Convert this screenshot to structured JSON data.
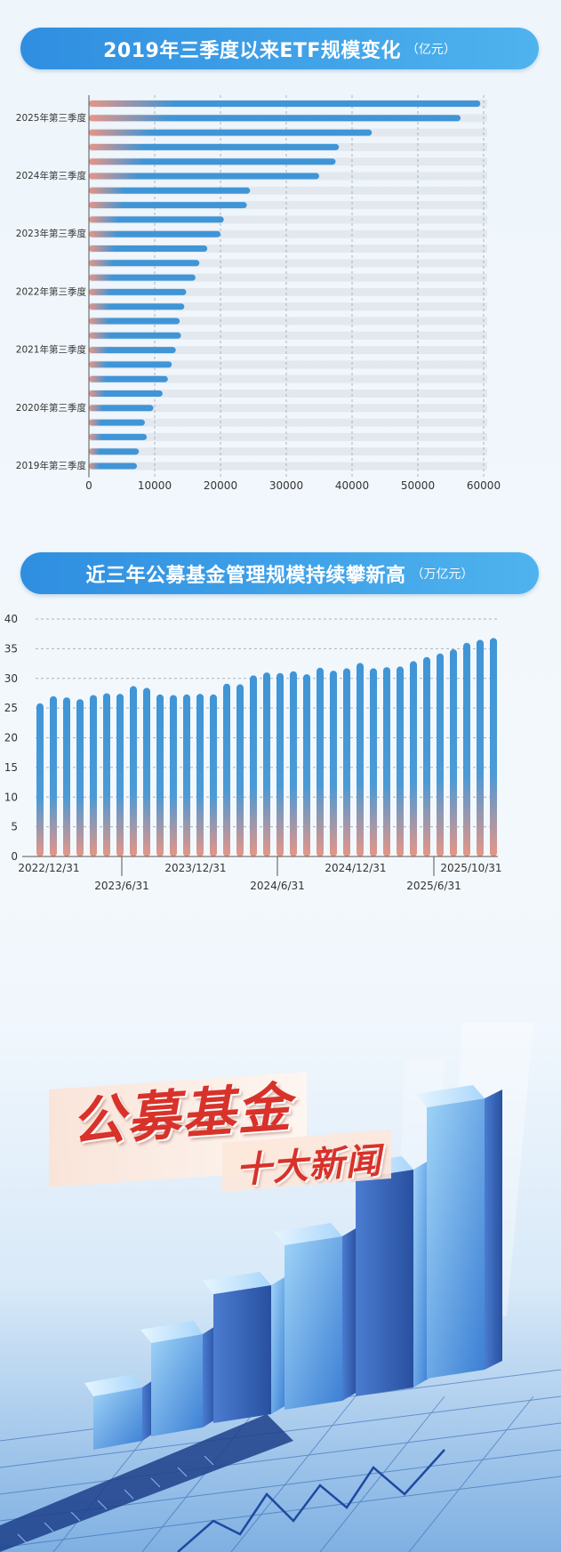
{
  "chart_data": [
    {
      "type": "bar",
      "orientation": "horizontal",
      "title": "2019年三季度以来ETF规模变化",
      "unit": "（亿元）",
      "xlim": [
        0,
        60000
      ],
      "x_ticks": [
        "0",
        "10000",
        "20000",
        "30000",
        "40000",
        "50000",
        "60000"
      ],
      "y_labels": [
        "2025年第三季度",
        "2024年第三季度",
        "2023年第三季度",
        "2022年第三季度",
        "2021年第三季度",
        "2020年第三季度",
        "2019年第三季度"
      ],
      "values_top_to_bottom": [
        59500,
        56500,
        43000,
        38000,
        37500,
        35000,
        24500,
        24000,
        20500,
        20000,
        18000,
        16800,
        16200,
        14800,
        14500,
        13800,
        14000,
        13200,
        12600,
        12000,
        11200,
        9800,
        8500,
        8800,
        7600,
        7300
      ]
    },
    {
      "type": "bar",
      "title": "近三年公募基金管理规模持续攀新高",
      "unit": "（万亿元）",
      "ylim": [
        0,
        40
      ],
      "y_ticks": [
        "0",
        "5",
        "10",
        "15",
        "20",
        "25",
        "30",
        "35",
        "40"
      ],
      "x_labels_row1": [
        "2022/12/31",
        "2023/12/31",
        "2024/12/31",
        "2025/10/31"
      ],
      "x_labels_row2": [
        "2023/6/31",
        "2024/6/31",
        "2025/6/31"
      ],
      "values": [
        25.8,
        27.0,
        26.8,
        26.5,
        27.2,
        27.5,
        27.4,
        28.7,
        28.4,
        27.3,
        27.2,
        27.3,
        27.4,
        27.3,
        29.1,
        29.0,
        30.5,
        31.0,
        30.9,
        31.2,
        30.7,
        31.8,
        31.3,
        31.7,
        32.6,
        31.7,
        31.9,
        32.0,
        32.9,
        33.6,
        34.2,
        34.9,
        36.0,
        36.5,
        36.8
      ]
    }
  ],
  "hero": {
    "title": "公募基金",
    "subtitle": "十大新闻"
  },
  "colors": {
    "bar_blue": "#3f95d6",
    "bar_red": "#e79585",
    "pill_start": "#2f8ee0",
    "pill_end": "#4fb3ee",
    "hero_title": "#d8322a"
  }
}
